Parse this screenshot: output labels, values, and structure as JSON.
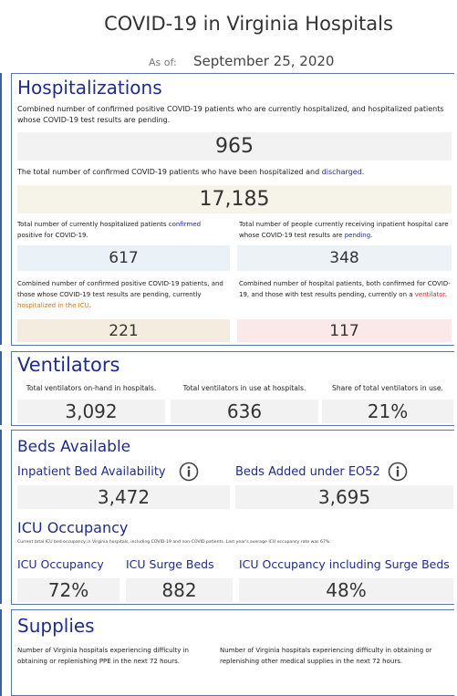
{
  "header": {
    "title": "COVID-19 in Virginia Hospitals",
    "as_of_label": "As of:",
    "as_of_date": "September 25, 2020"
  },
  "hospitalizations": {
    "title": "Hospitalizations",
    "combined": {
      "description": [
        {
          "text": "Combined number of confirmed positive COVID-19 patients who are currently hospitalized, and hospitalized patients whose COVID-19 test results are pending."
        }
      ],
      "value": "965"
    },
    "total": {
      "description": [
        {
          "text": "The total number of confirmed COVID-19 patients who have been hospitalized and "
        },
        {
          "text": "discharged",
          "color": "#1f2d8a"
        },
        {
          "text": "."
        }
      ],
      "value": "17,185"
    },
    "cards": [
      {
        "description": [
          {
            "text": "Total number of currently hospitalized patients "
          },
          {
            "text": "confirmed",
            "color": "#1f2d8a"
          },
          {
            "text": " positive for COVID-19."
          }
        ],
        "value": "617",
        "background": "#eaf1f7"
      },
      {
        "description": [
          {
            "text": "Total number of people currently receiving inpatient hospital care whose COVID-19 test results are "
          },
          {
            "text": "pending",
            "color": "#1f2d8a"
          },
          {
            "text": "."
          }
        ],
        "value": "348",
        "background": "#edf2f7"
      },
      {
        "description": [
          {
            "text": "Combined number of confirmed positive COVID-19 patients, and those whose COVID-19 test results are pending, currently "
          },
          {
            "text": "hospitalized in the ICU",
            "color": "#d07a1c"
          },
          {
            "text": "."
          }
        ],
        "value": "221",
        "background": "#f5ece0"
      },
      {
        "description": [
          {
            "text": "Combined number of hospital patients, both confirmed for COVID-19, and those with test results pending, currently on a "
          },
          {
            "text": "ventilator",
            "color": "#d0302a"
          },
          {
            "text": "."
          }
        ],
        "value": "117",
        "background": "#fbe8e8"
      }
    ]
  },
  "ventilators": {
    "title": "Ventilators",
    "items": [
      {
        "label": "Total ventilators on-hand in hospitals.",
        "value": "3,092"
      },
      {
        "label": "Total ventilators in use at hospitals.",
        "value": "636"
      },
      {
        "label": "Share of total ventilators in use.",
        "value": "21%"
      }
    ]
  },
  "beds": {
    "title": "Beds Available",
    "items": [
      {
        "label": "Inpatient Bed Availability",
        "value": "3,472"
      },
      {
        "label": "Beds Added under EO52",
        "value": "3,695"
      }
    ],
    "icu_title": "ICU Occupancy",
    "icu_note": "Current total ICU bed occupancy in Virginia hospitals, including COVID-19 and non-COVID patients. Last year's average ICU occupancy rate was 67%.",
    "icu_items": [
      {
        "label": "ICU Occupancy",
        "value": "72%"
      },
      {
        "label": "ICU Surge Beds",
        "value": "882"
      },
      {
        "label": "ICU Occupancy including Surge Beds",
        "value": "48%"
      }
    ]
  },
  "supplies": {
    "title": "Supplies",
    "items": [
      {
        "description": "Number of Virginia hospitals experiencing difficulty in obtaining or replenishing PPE in the next 72 hours."
      },
      {
        "description": "Number of Virginia hospitals experiencing difficulty in obtaining or replenishing other medical supplies in the next 72 hours."
      }
    ]
  }
}
